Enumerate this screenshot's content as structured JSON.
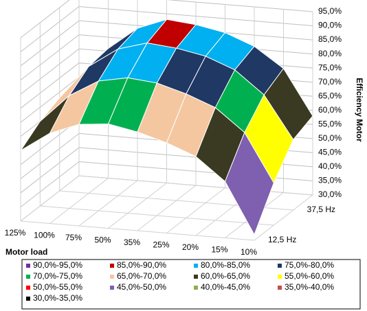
{
  "chart_data": {
    "type": "surface",
    "x_title": "Motor load",
    "z_title": "Efficiency Motor",
    "categories": [
      "125%",
      "100%",
      "75%",
      "50%",
      "35%",
      "25%",
      "20%",
      "15%",
      "10%"
    ],
    "depth_categories": [
      "12,5 Hz",
      null,
      "37,5 Hz",
      null
    ],
    "values": [
      [
        55,
        62,
        66,
        67,
        65,
        62,
        58,
        50,
        32
      ],
      [
        60,
        70,
        76,
        78,
        77,
        74,
        70,
        62,
        45
      ],
      [
        63,
        75,
        82,
        85,
        84,
        82,
        78,
        70,
        55
      ],
      [
        62,
        76,
        84,
        88,
        87,
        85,
        81,
        74,
        58
      ]
    ],
    "zlim": [
      30,
      95
    ],
    "zticks": [
      {
        "value": 95,
        "label": "95,0%"
      },
      {
        "value": 90,
        "label": "90,0%"
      },
      {
        "value": 85,
        "label": "85,0%"
      },
      {
        "value": 80,
        "label": "80,0%"
      },
      {
        "value": 75,
        "label": "75,0%"
      },
      {
        "value": 70,
        "label": "70,0%"
      },
      {
        "value": 65,
        "label": "65,0%"
      },
      {
        "value": 60,
        "label": "60,0%"
      },
      {
        "value": 55,
        "label": "55,0%"
      },
      {
        "value": 50,
        "label": "50,0%"
      },
      {
        "value": 45,
        "label": "45,0%"
      },
      {
        "value": 40,
        "label": "40,0%"
      },
      {
        "value": 35,
        "label": "35,0%"
      },
      {
        "value": 30,
        "label": "30,0%"
      }
    ],
    "grid": true,
    "bands": [
      {
        "label": "90,0%-95,0%",
        "range": [
          90,
          95
        ],
        "color": "#7030a0"
      },
      {
        "label": "85,0%-90,0%",
        "range": [
          85,
          90
        ],
        "color": "#c00000"
      },
      {
        "label": "80,0%-85,0%",
        "range": [
          80,
          85
        ],
        "color": "#00b0f0"
      },
      {
        "label": "75,0%-80,0%",
        "range": [
          75,
          80
        ],
        "color": "#1f3864"
      },
      {
        "label": "70,0%-75,0%",
        "range": [
          70,
          75
        ],
        "color": "#00b050"
      },
      {
        "label": "65,0%-70,0%",
        "range": [
          65,
          70
        ],
        "color": "#f4c7a1"
      },
      {
        "label": "60,0%-65,0%",
        "range": [
          60,
          65
        ],
        "color": "#3a3a22"
      },
      {
        "label": "55,0%-60,0%",
        "range": [
          55,
          60
        ],
        "color": "#ffff00"
      },
      {
        "label": "50,0%-55,0%",
        "range": [
          50,
          55
        ],
        "color": "#ff0000"
      },
      {
        "label": "45,0%-50,0%",
        "range": [
          45,
          50
        ],
        "color": "#7f5fb0"
      },
      {
        "label": "40,0%-45,0%",
        "range": [
          40,
          45
        ],
        "color": "#8db14d"
      },
      {
        "label": "35,0%-40,0%",
        "range": [
          35,
          40
        ],
        "color": "#c0504d"
      },
      {
        "label": "30,0%-35,0%",
        "range": [
          30,
          35
        ],
        "color": "#000000"
      }
    ]
  }
}
